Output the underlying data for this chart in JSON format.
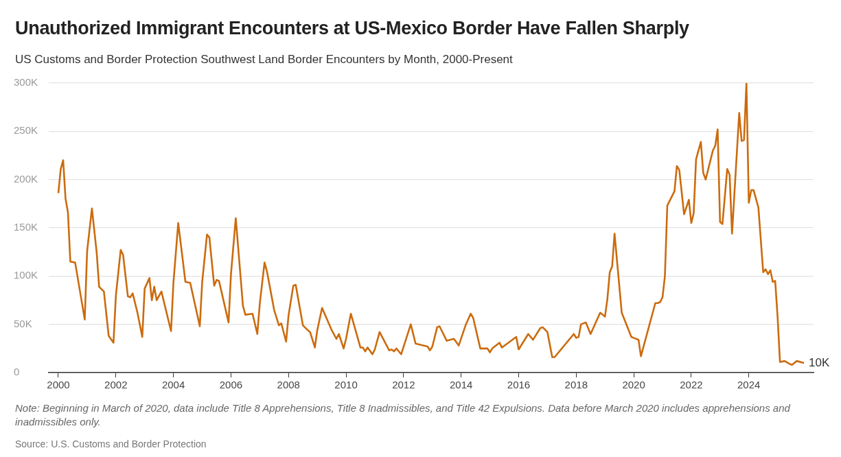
{
  "chart_data": {
    "type": "line",
    "title": "Unauthorized Immigrant Encounters at US-Mexico Border Have Fallen Sharply",
    "subtitle": "US Customs and Border Protection Southwest Land Border Encounters by Month, 2000-Present",
    "x": [
      "2000-01",
      "2000-02",
      "2000-03",
      "2000-04",
      "2000-05",
      "2000-06",
      "2000-08",
      "2000-12",
      "2001-01",
      "2001-03",
      "2001-05",
      "2001-06",
      "2001-08",
      "2001-10",
      "2001-12",
      "2002-01",
      "2002-03",
      "2002-04",
      "2002-06",
      "2002-07",
      "2002-08",
      "2002-10",
      "2002-12",
      "2003-01",
      "2003-03",
      "2003-04",
      "2003-05",
      "2003-06",
      "2003-08",
      "2003-12",
      "2004-01",
      "2004-03",
      "2004-06",
      "2004-08",
      "2004-12",
      "2005-01",
      "2005-03",
      "2005-04",
      "2005-06",
      "2005-07",
      "2005-08",
      "2005-12",
      "2006-01",
      "2006-03",
      "2006-06",
      "2006-07",
      "2006-10",
      "2006-12",
      "2007-01",
      "2007-03",
      "2007-04",
      "2007-07",
      "2007-09",
      "2007-10",
      "2007-12",
      "2008-01",
      "2008-03",
      "2008-04",
      "2008-07",
      "2008-09",
      "2008-10",
      "2008-12",
      "2009-01",
      "2009-03",
      "2009-07",
      "2009-09",
      "2009-10",
      "2009-12",
      "2010-01",
      "2010-03",
      "2010-07",
      "2010-08",
      "2010-09",
      "2010-10",
      "2010-12",
      "2011-01",
      "2011-03",
      "2011-07",
      "2011-08",
      "2011-09",
      "2011-10",
      "2011-12",
      "2012-04",
      "2012-06",
      "2012-11",
      "2012-12",
      "2013-01",
      "2013-03",
      "2013-04",
      "2013-07",
      "2013-10",
      "2013-12",
      "2014-03",
      "2014-05",
      "2014-06",
      "2014-09",
      "2014-12",
      "2015-01",
      "2015-02",
      "2015-05",
      "2015-06",
      "2015-12",
      "2016-01",
      "2016-05",
      "2016-07",
      "2016-10",
      "2016-11",
      "2017-01",
      "2017-03",
      "2017-04",
      "2017-12",
      "2018-01",
      "2018-02",
      "2018-03",
      "2018-05",
      "2018-07",
      "2018-09",
      "2018-11",
      "2018-12",
      "2019-01",
      "2019-02",
      "2019-03",
      "2019-04",
      "2019-05",
      "2019-08",
      "2019-12",
      "2020-01",
      "2020-03",
      "2020-04",
      "2020-10",
      "2020-11",
      "2020-12",
      "2021-01",
      "2021-02",
      "2021-03",
      "2021-06",
      "2021-07",
      "2021-08",
      "2021-10",
      "2021-12",
      "2022-01",
      "2022-02",
      "2022-03",
      "2022-05",
      "2022-06",
      "2022-07",
      "2022-10",
      "2022-11",
      "2022-12",
      "2023-01",
      "2023-02",
      "2023-04",
      "2023-05",
      "2023-06",
      "2023-09",
      "2023-10",
      "2023-11",
      "2023-12",
      "2024-01",
      "2024-02",
      "2024-03",
      "2024-05",
      "2024-07",
      "2024-08",
      "2024-09",
      "2024-10",
      "2024-11",
      "2024-12",
      "2025-01",
      "2025-02",
      "2025-04",
      "2025-06",
      "2025-07",
      "2025-09",
      "2025-12"
    ],
    "values": [
      186000,
      211000,
      220000,
      180000,
      166000,
      115000,
      114000,
      55000,
      126000,
      170000,
      124000,
      89000,
      84000,
      38000,
      31000,
      80000,
      127000,
      122000,
      79000,
      78000,
      82000,
      62000,
      37000,
      87000,
      98000,
      75000,
      89000,
      75000,
      84000,
      43000,
      93000,
      155000,
      94000,
      93000,
      48000,
      94000,
      143000,
      140000,
      90000,
      96000,
      95000,
      52000,
      102000,
      160000,
      69000,
      60000,
      61000,
      40000,
      71000,
      114000,
      105000,
      65000,
      49000,
      51000,
      32000,
      59000,
      90000,
      91000,
      49000,
      44000,
      42000,
      26000,
      44000,
      67000,
      44000,
      35000,
      40000,
      25000,
      35000,
      61000,
      26000,
      26000,
      22000,
      26000,
      19000,
      24000,
      42000,
      23000,
      24000,
      22000,
      25000,
      19000,
      50000,
      30000,
      27000,
      23000,
      27000,
      47000,
      48000,
      33000,
      35000,
      28000,
      50000,
      61000,
      57000,
      25000,
      25000,
      21000,
      25000,
      31000,
      26000,
      37000,
      24000,
      40000,
      34000,
      46000,
      47000,
      42000,
      16000,
      16000,
      40000,
      36000,
      37000,
      50000,
      52000,
      40000,
      51000,
      62000,
      60000,
      58000,
      76000,
      104000,
      110000,
      144000,
      62000,
      37000,
      36000,
      34000,
      17000,
      72000,
      72000,
      73000,
      78000,
      100000,
      173000,
      188000,
      214000,
      210000,
      164000,
      179000,
      155000,
      165000,
      221000,
      239000,
      207000,
      200000,
      230000,
      235000,
      252000,
      156000,
      154000,
      211000,
      205000,
      144000,
      269000,
      240000,
      241000,
      300000,
      176000,
      189000,
      189000,
      171000,
      104000,
      107000,
      102000,
      106000,
      94000,
      95000,
      58000,
      11000,
      12000,
      9000,
      8000,
      12000,
      10000
    ],
    "color": "#cb6b0e",
    "marker": "none",
    "xlim": [
      "1999-09",
      "2026-04"
    ],
    "xticks": [
      "2000",
      "2002",
      "2004",
      "2006",
      "2008",
      "2010",
      "2012",
      "2014",
      "2016",
      "2018",
      "2020",
      "2022",
      "2024"
    ],
    "ylim": [
      0,
      300000
    ],
    "yticks": [
      0,
      {
        "value": 50000,
        "label": "50K"
      },
      {
        "value": 100000,
        "label": "100K"
      },
      {
        "value": 150000,
        "label": "150K"
      },
      {
        "value": 200000,
        "label": "200K"
      },
      {
        "value": 250000,
        "label": "250K"
      },
      {
        "value": 300000,
        "label": "300K"
      }
    ],
    "grid": "y",
    "annotations": [
      {
        "text": "10K",
        "x": "2025-12",
        "y": 10000
      },
      "Note: Beginning in March of 2020, data include Title 8 Apprehensions, Title 8 Inadmissibles, and Title 42 Expulsions. Data before March 2020 includes apprehensions and inadmissibles only.",
      "Source: U.S. Customs and Border Protection"
    ]
  }
}
